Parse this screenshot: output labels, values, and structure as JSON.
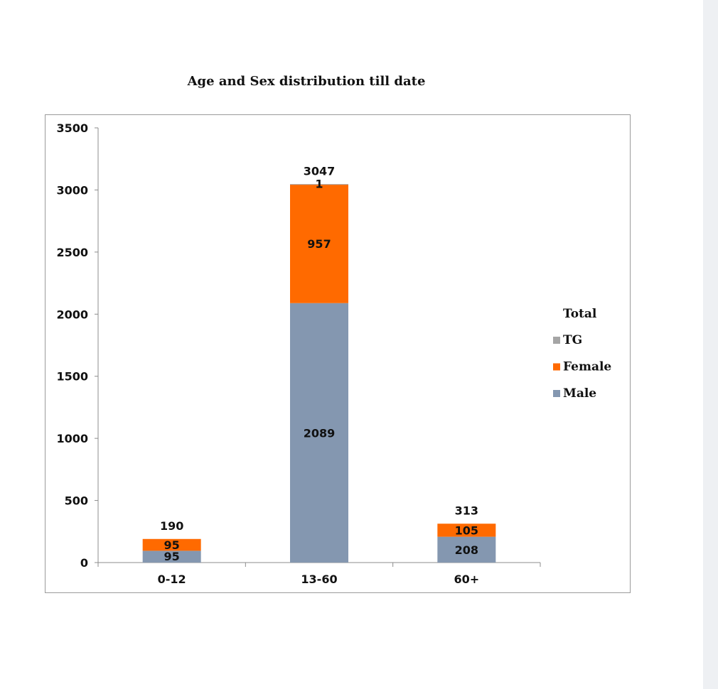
{
  "chart_data": {
    "type": "bar",
    "stacked": true,
    "title": "Age and Sex distribution till date",
    "categories": [
      "0-12",
      "13-60",
      "60+"
    ],
    "series": [
      {
        "name": "Male",
        "values": [
          95,
          2089,
          208
        ],
        "color": "#8497b0"
      },
      {
        "name": "Female",
        "values": [
          95,
          957,
          105
        ],
        "color": "#ff6a00"
      },
      {
        "name": "TG",
        "values": [
          0,
          1,
          0
        ],
        "color": "#a5a5a5"
      }
    ],
    "data_labels": [
      {
        "category": "0-12",
        "male": "95",
        "female": "95",
        "tg": ""
      },
      {
        "category": "13-60",
        "male": "2089",
        "female": "957",
        "tg": "1"
      },
      {
        "category": "60+",
        "male": "208",
        "female": "105",
        "tg": ""
      }
    ],
    "totals": [
      190,
      3047,
      313
    ],
    "legend_title": "Total",
    "legend_position": "right",
    "ylim": [
      0,
      3500
    ],
    "yticks": [
      0,
      500,
      1000,
      1500,
      2000,
      2500,
      3000,
      3500
    ],
    "xlabel": "",
    "ylabel": "",
    "grid": false
  }
}
